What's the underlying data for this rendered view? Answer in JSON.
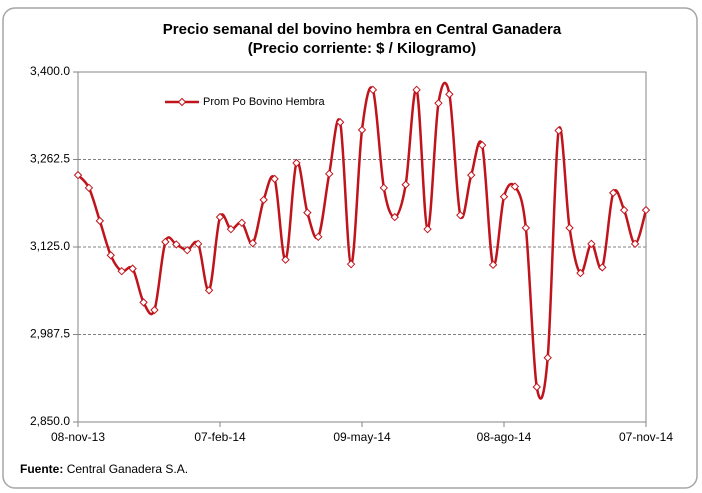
{
  "chart_data": {
    "type": "line",
    "title": "Precio semanal del bovino  hembra en Central Ganadera",
    "subtitle": "(Precio corriente: $ / Kilogramo)",
    "categories": [
      "08-nov-13",
      null,
      null,
      null,
      null,
      null,
      null,
      null,
      null,
      null,
      null,
      null,
      null,
      "07-feb-14",
      null,
      null,
      null,
      null,
      null,
      null,
      null,
      null,
      null,
      null,
      null,
      null,
      "09-may-14",
      null,
      null,
      null,
      null,
      null,
      null,
      null,
      null,
      null,
      null,
      null,
      null,
      "08-ago-14",
      null,
      null,
      null,
      null,
      null,
      null,
      null,
      null,
      null,
      null,
      null,
      null,
      "07-nov-14"
    ],
    "series": [
      {
        "name": "Prom Po Bovino Hembra",
        "color": "#c0141c",
        "values": [
          3238,
          3218,
          3166,
          3112,
          3087,
          3091,
          3038,
          3026,
          3133,
          3129,
          3120,
          3130,
          3057,
          3172,
          3153,
          3163,
          3131,
          3199,
          3232,
          3105,
          3257,
          3179,
          3141,
          3240,
          3321,
          3098,
          3309,
          3372,
          3218,
          3172,
          3223,
          3372,
          3153,
          3351,
          3365,
          3175,
          3238,
          3285,
          3097,
          3204,
          3220,
          3155,
          2905,
          2951,
          3308,
          3155,
          3084,
          3130,
          3093,
          3210,
          3183,
          3130,
          3183
        ]
      }
    ],
    "ylim": [
      2850,
      3400
    ],
    "yticks": [
      {
        "value": 2850,
        "label": "2,850.0"
      },
      {
        "value": 2987.5,
        "label": "2,987.5"
      },
      {
        "value": 3125,
        "label": "3,125.0"
      },
      {
        "value": 3262.5,
        "label": "3,262.5"
      },
      {
        "value": 3400,
        "label": "3,400.0"
      }
    ],
    "grid": true,
    "legend": "top-left",
    "source": {
      "label": "Fuente:",
      "text": "Central Ganadera S.A."
    }
  }
}
